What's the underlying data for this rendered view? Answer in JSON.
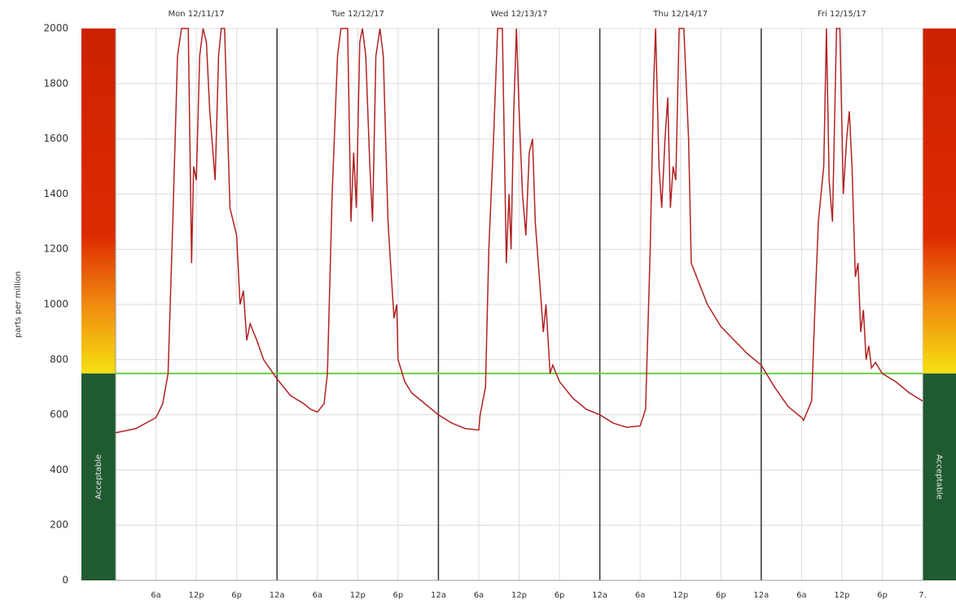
{
  "chart_data": {
    "type": "line",
    "y_label": "parts per million",
    "band_label": "Acceptable",
    "color": "#b22222",
    "threshold": 750,
    "threshold_color": "#66cc44",
    "ylim": [
      0,
      2000
    ],
    "yticks": [
      0,
      200,
      400,
      600,
      800,
      1000,
      1200,
      1400,
      1600,
      1800,
      2000
    ],
    "xlim": [
      0,
      120
    ],
    "xticks": [
      {
        "value": 6,
        "label": "6a"
      },
      {
        "value": 12,
        "label": "12p"
      },
      {
        "value": 18,
        "label": "6p"
      },
      {
        "value": 24,
        "label": "12a"
      },
      {
        "value": 30,
        "label": "6a"
      },
      {
        "value": 36,
        "label": "12p"
      },
      {
        "value": 42,
        "label": "6p"
      },
      {
        "value": 48,
        "label": "12a"
      },
      {
        "value": 54,
        "label": "6a"
      },
      {
        "value": 60,
        "label": "12p"
      },
      {
        "value": 66,
        "label": "6p"
      },
      {
        "value": 72,
        "label": "12a"
      },
      {
        "value": 78,
        "label": "6a"
      },
      {
        "value": 84,
        "label": "12p"
      },
      {
        "value": 90,
        "label": "6p"
      },
      {
        "value": 96,
        "label": "12a"
      },
      {
        "value": 102,
        "label": "6a"
      },
      {
        "value": 108,
        "label": "12p"
      },
      {
        "value": 114,
        "label": "6p"
      },
      {
        "value": 120,
        "label": "7."
      }
    ],
    "day_boundaries": [
      24,
      48,
      72,
      96
    ],
    "day_labels": [
      {
        "x": 12,
        "label": "Mon 12/11/17"
      },
      {
        "x": 36,
        "label": "Tue 12/12/17"
      },
      {
        "x": 60,
        "label": "Wed 12/13/17"
      },
      {
        "x": 84,
        "label": "Thu 12/14/17"
      },
      {
        "x": 108,
        "label": "Fri 12/15/17"
      }
    ],
    "grid": true,
    "x": [
      0,
      3,
      6,
      7,
      7.8,
      8.5,
      9.2,
      9.8,
      10.8,
      11.3,
      11.6,
      12,
      12.5,
      13,
      13.5,
      14,
      14.8,
      15.3,
      15.7,
      16.2,
      17,
      17.5,
      18,
      18.5,
      19,
      19.5,
      20,
      21,
      22,
      24,
      26,
      28,
      29,
      30,
      31,
      31.5,
      32.2,
      33,
      33.5,
      34.5,
      35,
      35.4,
      35.8,
      36.3,
      36.7,
      37.2,
      37.8,
      38.2,
      38.7,
      39.3,
      39.8,
      40.5,
      41,
      41.4,
      41.8,
      42,
      43,
      44,
      46,
      48,
      50,
      52,
      54,
      54.2,
      55,
      55.5,
      56.2,
      56.8,
      57.5,
      58.1,
      58.5,
      58.8,
      59.2,
      59.6,
      60,
      60.5,
      61,
      61.5,
      62,
      62.4,
      63,
      63.6,
      64,
      64.6,
      65,
      66,
      68,
      70,
      72,
      74,
      76,
      78,
      78.8,
      79.5,
      80,
      80.3,
      80.8,
      81.2,
      81.7,
      82.1,
      82.5,
      82.9,
      83.3,
      83.8,
      84.5,
      85.2,
      85.6,
      88,
      90,
      92,
      94,
      96,
      98,
      100,
      102,
      102.3,
      103.5,
      104,
      104.5,
      105.3,
      105.7,
      106.1,
      106.6,
      107.2,
      107.7,
      108.2,
      108.7,
      109.1,
      109.5,
      110,
      110.4,
      110.8,
      111.2,
      111.6,
      112,
      112.4,
      113,
      114,
      116,
      118,
      120
    ],
    "values": [
      535,
      550,
      590,
      640,
      750,
      1300,
      1900,
      2000,
      2000,
      1150,
      1500,
      1450,
      1900,
      2000,
      1950,
      1700,
      1450,
      1900,
      2000,
      2000,
      1350,
      1300,
      1250,
      1000,
      1050,
      870,
      930,
      870,
      800,
      730,
      670,
      640,
      620,
      610,
      640,
      750,
      1400,
      1900,
      2000,
      2000,
      1300,
      1550,
      1350,
      1950,
      2000,
      1900,
      1500,
      1300,
      1900,
      2000,
      1900,
      1300,
      1100,
      950,
      1000,
      800,
      720,
      680,
      640,
      600,
      570,
      550,
      545,
      600,
      700,
      1200,
      1600,
      2000,
      2000,
      1150,
      1400,
      1200,
      1700,
      2000,
      1700,
      1400,
      1250,
      1550,
      1600,
      1300,
      1100,
      900,
      1000,
      750,
      780,
      720,
      660,
      620,
      600,
      570,
      555,
      560,
      620,
      1200,
      1800,
      2000,
      1500,
      1350,
      1600,
      1750,
      1350,
      1500,
      1450,
      2000,
      2000,
      1600,
      1150,
      1000,
      920,
      870,
      820,
      780,
      700,
      630,
      590,
      580,
      650,
      1000,
      1300,
      1500,
      2000,
      1450,
      1300,
      2000,
      2000,
      1400,
      1600,
      1700,
      1500,
      1100,
      1150,
      900,
      980,
      800,
      850,
      770,
      790,
      750,
      720,
      680,
      650
    ]
  }
}
